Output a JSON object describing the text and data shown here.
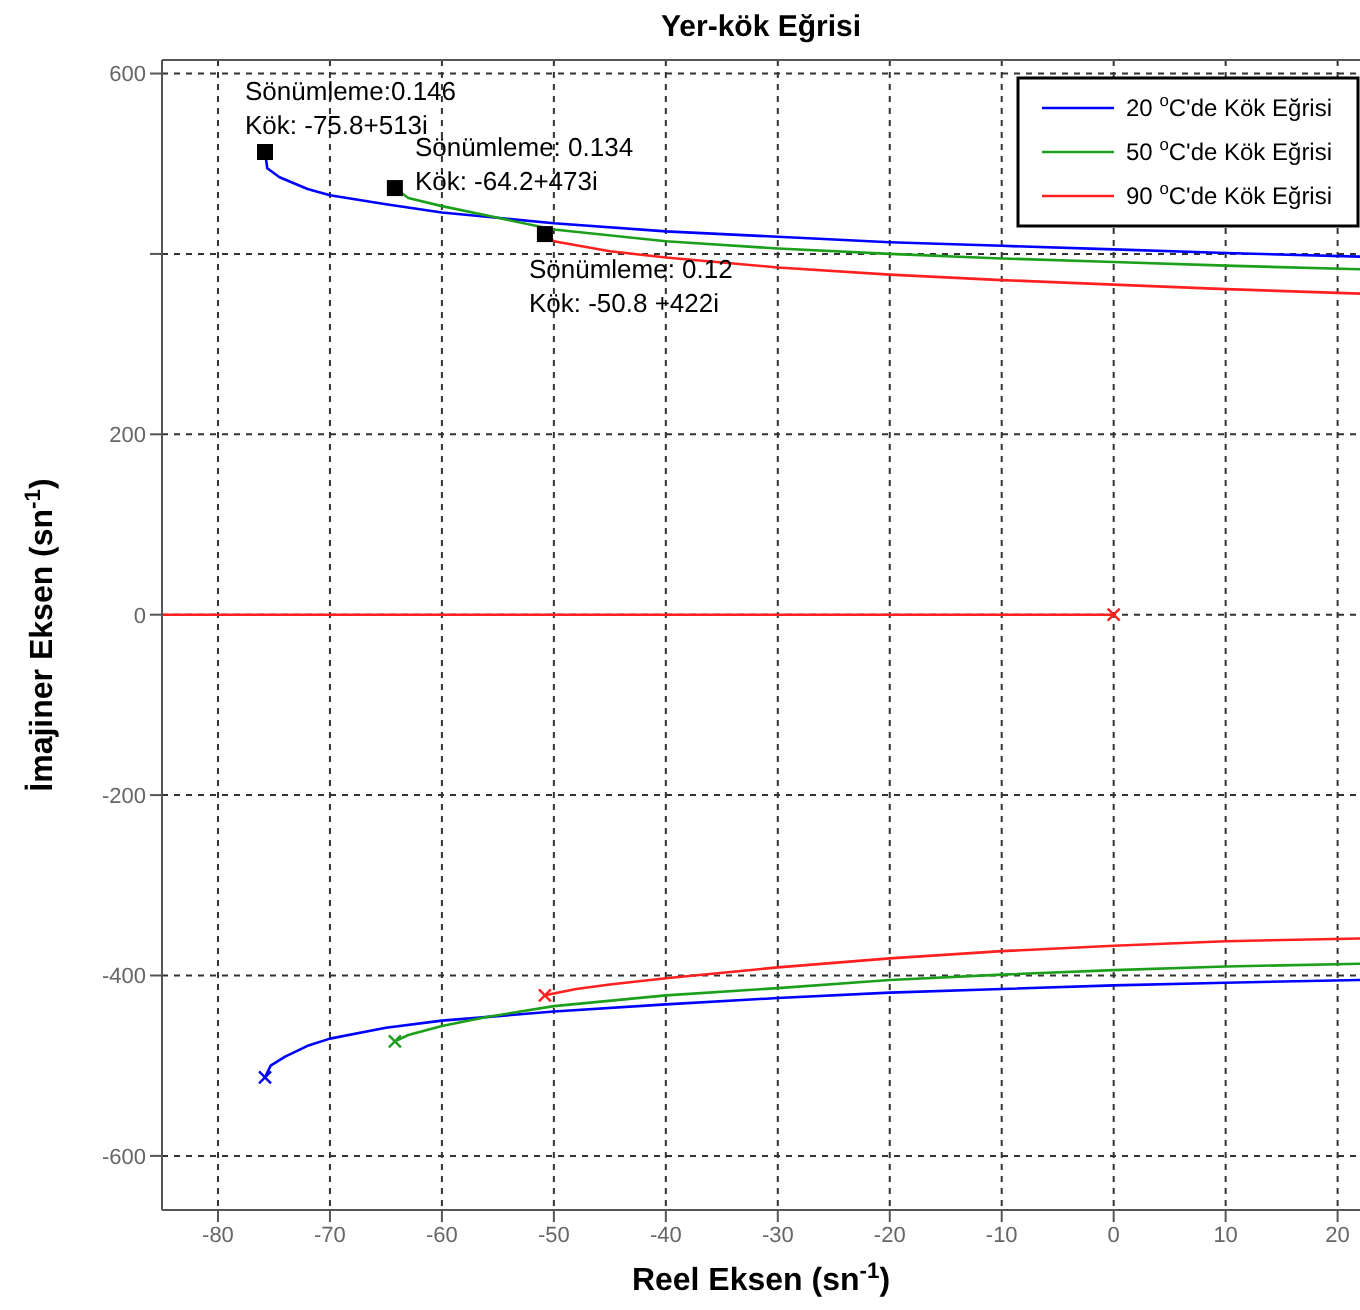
{
  "chart_data": {
    "type": "line",
    "title": "Yer-kök Eğrisi",
    "xlabel": "Reel Eksen (sn$^{-1}$)",
    "ylabel": "İmajiner Eksen (sn$^{-1}$)",
    "xlim": [
      -85,
      22
    ],
    "ylim": [
      -660,
      615
    ],
    "xticks": [
      -80,
      -70,
      -60,
      -50,
      -40,
      -30,
      -20,
      -10,
      0,
      10,
      20
    ],
    "yticks": [
      -600,
      -400,
      -200,
      0,
      200,
      {
        "value": 400,
        "label": null
      },
      600
    ],
    "grid": true,
    "legend": "top right",
    "line_style": "solid",
    "series": [
      {
        "name": "20 $^{o}$C'de Kök Eğrisi",
        "color": "#0000ff",
        "marker": "none",
        "x": [
          -75.8,
          -75.6,
          -74.5,
          -72,
          -70,
          -65,
          -60,
          -50,
          -40,
          -30,
          -20,
          -10,
          0,
          10,
          22
        ],
        "values": [
          513,
          495,
          485,
          472,
          465,
          455,
          446,
          434,
          425,
          419,
          413,
          409,
          405,
          401,
          397
        ]
      },
      {
        "name": "50 $^{o}$C'de Kök Eğrisi",
        "color": "#1ca01c",
        "marker": "none",
        "x": [
          -64.2,
          -63,
          -60,
          -55,
          -50,
          -40,
          -30,
          -20,
          -10,
          0,
          10,
          22
        ],
        "values": [
          473,
          462,
          453,
          440,
          427,
          414,
          406,
          400,
          395,
          391,
          387,
          383
        ]
      },
      {
        "name": "90 $^{o}$C'de Kök Eğrisi",
        "color": "#ff2020",
        "marker": "none",
        "x": [
          -50.8,
          -50,
          -45,
          -40,
          -30,
          -20,
          -10,
          0,
          10,
          22
        ],
        "values": [
          422,
          414,
          403,
          396,
          385,
          377,
          371,
          366,
          361,
          356
        ]
      },
      {
        "color": "#0000ff",
        "marker": "none",
        "x": [
          -75.8,
          -75.3,
          -74,
          -72,
          -70,
          -65,
          -60,
          -50,
          -40,
          -30,
          -20,
          -10,
          0,
          10,
          22
        ],
        "values": [
          -513,
          -500,
          -490,
          -478,
          -470,
          -458,
          -450,
          -440,
          -432,
          -425,
          -419,
          -415,
          -411,
          -408,
          -405
        ]
      },
      {
        "color": "#1ca01c",
        "marker": "none",
        "x": [
          -64.2,
          -63,
          -60,
          -56,
          -50,
          -40,
          -30,
          -20,
          -10,
          0,
          10,
          22
        ],
        "values": [
          -473,
          -466,
          -456,
          -446,
          -434,
          -422,
          -414,
          -405,
          -399,
          -394,
          -390,
          -387
        ]
      },
      {
        "color": "#ff2020",
        "marker": "none",
        "x": [
          -50.8,
          -48,
          -45,
          -40,
          -30,
          -20,
          -10,
          0,
          10,
          22
        ],
        "values": [
          -422,
          -415,
          -410,
          -403,
          -391,
          -381,
          -373,
          -367,
          -362,
          -359
        ]
      },
      {
        "color": "#ff2020",
        "marker": "none",
        "x": [
          -85,
          0
        ],
        "values": [
          0,
          0
        ]
      },
      {
        "type": "scatter",
        "marker": "cross",
        "colors": [
          "#0000ff",
          "#1ca01c",
          "#ff2020",
          "#ff2020"
        ],
        "x": [
          -75.8,
          -64.2,
          -50.8,
          0
        ],
        "values": [
          -513,
          -473,
          -422,
          0
        ]
      },
      {
        "type": "scatter",
        "marker": "square",
        "color": "#000000",
        "x": [
          -75.8,
          -64.2,
          -50.8
        ],
        "values": [
          513,
          473,
          422
        ]
      }
    ],
    "annotations": [
      {
        "text": "Sönümleme:0.146\nKök: -75.8+513i",
        "x": -75.8,
        "y": 513
      },
      {
        "text": "Sönümleme: 0.134\nKök: -64.2+473i",
        "x": -64.2,
        "y": 473
      },
      {
        "text": "Sönümleme: 0.12\nKök: -50.8 +422i",
        "x": -50.8,
        "y": 422
      }
    ]
  }
}
